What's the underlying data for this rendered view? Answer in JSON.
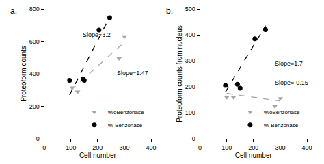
{
  "chart_data": [
    {
      "type": "scatter",
      "label": "a.",
      "x_label": "Cell number",
      "y_label": "Proteoform counts",
      "xlim": [
        0,
        400
      ],
      "xticks": [
        0,
        100,
        200,
        300,
        400
      ],
      "ylim": [
        0,
        800
      ],
      "yticks": [
        0,
        200,
        400,
        600,
        800
      ],
      "grid": false,
      "legend": "lower right",
      "series": [
        {
          "name": "w/oBenzonase",
          "color": "#a6a6a6",
          "marker": "triangle-down",
          "line_style": "dashed",
          "x": [
            105,
            125,
            150,
            280,
            300
          ],
          "values": [
            315,
            290,
            360,
            495,
            630
          ],
          "trend": {
            "x": [
              100,
              300
            ],
            "values": [
              300,
              594
            ]
          }
        },
        {
          "name": "w/ Benzonase",
          "color": "#000000",
          "marker": "circle",
          "line_style": "dashed",
          "x": [
            95,
            145,
            150,
            205,
            245
          ],
          "values": [
            360,
            370,
            360,
            670,
            745
          ],
          "trend": {
            "x": [
              95,
              245
            ],
            "values": [
              270,
              750
            ]
          }
        }
      ],
      "annotations": [
        {
          "text": "Slope=3.2",
          "x": 140,
          "y": 640
        },
        {
          "text": "Slope=1.47",
          "x": 268,
          "y": 405
        }
      ]
    },
    {
      "type": "scatter",
      "label": "b.",
      "x_label": "Cell number",
      "y_label": "Proteoform counts from nucleus",
      "xlim": [
        0,
        400
      ],
      "xticks": [
        0,
        100,
        200,
        300,
        400
      ],
      "ylim": [
        0,
        500
      ],
      "yticks": [
        0,
        100,
        200,
        300,
        400,
        500
      ],
      "grid": false,
      "legend": "lower right",
      "series": [
        {
          "name": "w/oBenzonase",
          "color": "#a6a6a6",
          "marker": "triangle-down",
          "line_style": "dashed",
          "x": [
            100,
            125,
            150,
            280,
            300
          ],
          "values": [
            160,
            160,
            195,
            125,
            155
          ],
          "trend": {
            "x": [
              100,
              300
            ],
            "values": [
              175,
              145
            ]
          }
        },
        {
          "name": "w/ Benzonase",
          "color": "#000000",
          "marker": "circle",
          "line_style": "dashed",
          "x": [
            95,
            140,
            150,
            205,
            245
          ],
          "values": [
            205,
            210,
            195,
            385,
            420
          ],
          "trend": {
            "x": [
              95,
              245
            ],
            "values": [
              180,
              435
            ]
          }
        }
      ],
      "annotations": [
        {
          "text": "Slope=1.7",
          "x": 275,
          "y": 290
        },
        {
          "text": "Slope=-0.15",
          "x": 275,
          "y": 215
        }
      ]
    }
  ]
}
